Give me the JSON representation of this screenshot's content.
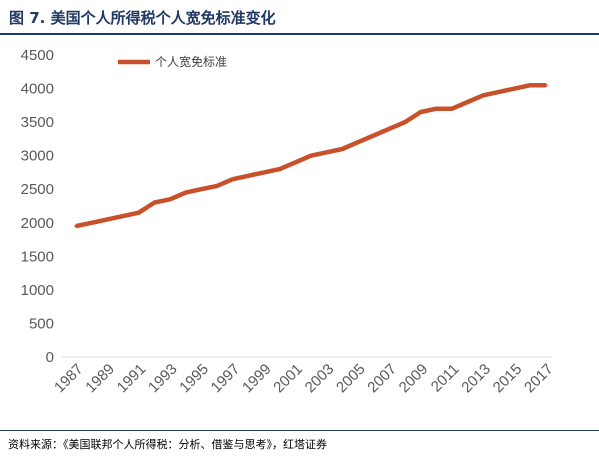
{
  "header": {
    "title": "图 7.  美国个人所得税个人宽免标准变化"
  },
  "footer": {
    "source": "资料来源：《美国联邦个人所得税：分析、借鉴与思考》，红塔证券"
  },
  "colors": {
    "series": "#c8512b",
    "title": "#1f3864",
    "axis": "#d9d9d9",
    "tick_text": "#595959"
  },
  "chart_data": {
    "type": "line",
    "title": "",
    "xlabel": "",
    "ylabel": "",
    "ylim": [
      0,
      4500
    ],
    "y_ticks": [
      0,
      500,
      1000,
      1500,
      2000,
      2500,
      3000,
      3500,
      4000,
      4500
    ],
    "x_tick_labels": [
      "1987",
      "1989",
      "1991",
      "1993",
      "1995",
      "1997",
      "1999",
      "2001",
      "2003",
      "2005",
      "2007",
      "2009",
      "2011",
      "2013",
      "2015",
      "2017"
    ],
    "grid": false,
    "legend_position": "top-left",
    "x": [
      1987,
      1988,
      1989,
      1990,
      1991,
      1992,
      1993,
      1994,
      1995,
      1996,
      1997,
      1998,
      1999,
      2000,
      2001,
      2002,
      2003,
      2004,
      2005,
      2006,
      2007,
      2008,
      2009,
      2010,
      2011,
      2012,
      2013,
      2014,
      2015,
      2016,
      2017
    ],
    "series": [
      {
        "name": "个人宽免标准",
        "values": [
          1950,
          2000,
          2050,
          2100,
          2150,
          2300,
          2350,
          2450,
          2500,
          2550,
          2650,
          2700,
          2750,
          2800,
          2900,
          3000,
          3050,
          3100,
          3200,
          3300,
          3400,
          3500,
          3650,
          3700,
          3700,
          3800,
          3900,
          3950,
          4000,
          4050,
          4050
        ]
      }
    ]
  }
}
